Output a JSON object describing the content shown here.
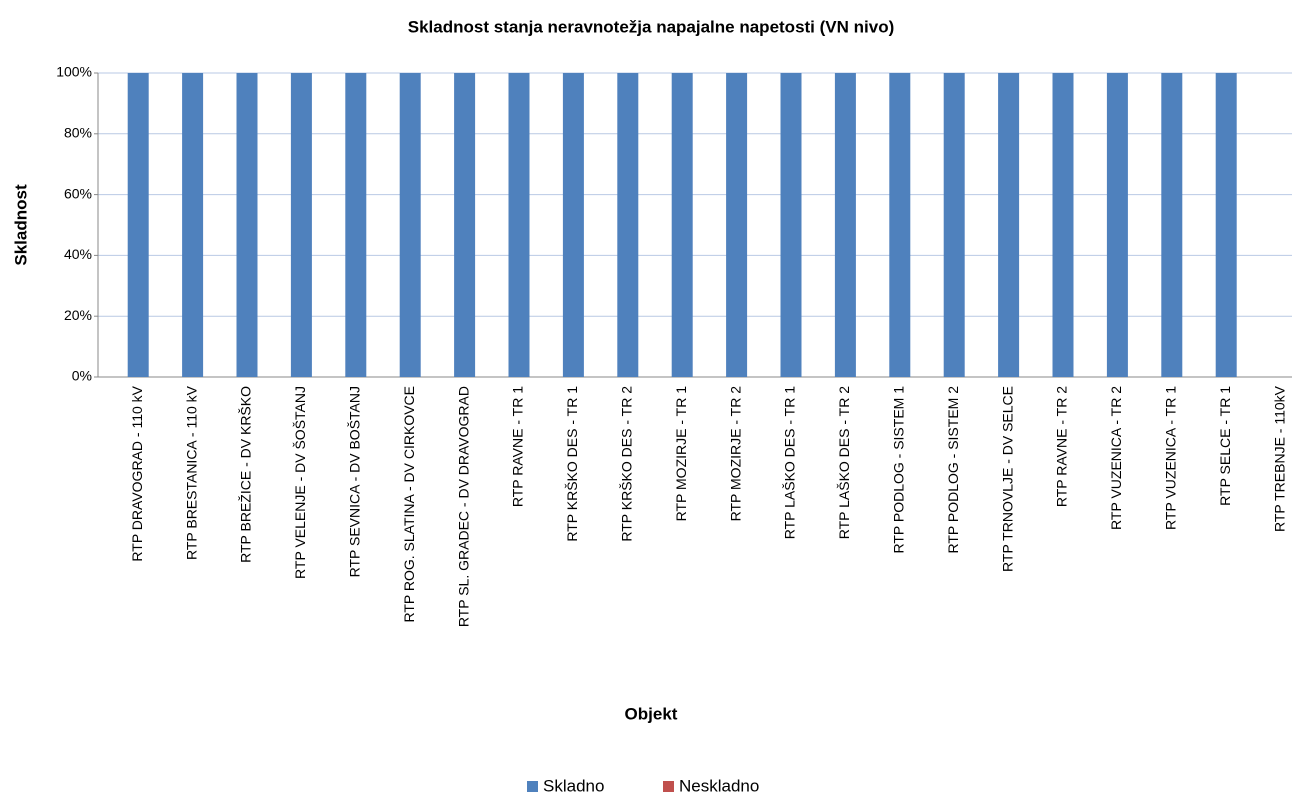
{
  "chart_data": {
    "type": "bar",
    "stacked": true,
    "title": "Skladnost stanja neravnotežja napajalne napetosti (VN nivo)",
    "x_label": "Objekt",
    "y_label": "Skladnost",
    "categories": [
      "RTP DRAVOGRAD - 110 kV",
      "RTP BRESTANICA - 110 kV",
      "RTP BREŽICE - DV KRŠKO",
      "RTP VELENJE - DV ŠOŠTANJ",
      "RTP SEVNICA - DV BOŠTANJ",
      "RTP ROG. SLATINA - DV CIRKOVCE",
      "RTP SL. GRADEC - DV DRAVOGRAD",
      "RTP RAVNE - TR 1",
      "RTP KRŠKO DES - TR 1",
      "RTP KRŠKO DES - TR 2",
      "RTP MOZIRJE - TR 1",
      "RTP MOZIRJE - TR 2",
      "RTP LAŠKO DES - TR 1",
      "RTP LAŠKO DES - TR 2",
      "RTP PODLOG - SISTEM 1",
      "RTP PODLOG - SISTEM 2",
      "RTP TRNOVLJE - DV SELCE",
      "RTP RAVNE - TR 2",
      "RTP VUZENICA - TR 2",
      "RTP VUZENICA - TR 1",
      "RTP SELCE - TR 1",
      "RTP TREBNJE - 110kV"
    ],
    "series": [
      {
        "name": "Skladno",
        "color": "#4f81bd",
        "values": [
          100,
          100,
          100,
          100,
          100,
          100,
          100,
          100,
          100,
          100,
          100,
          100,
          100,
          100,
          100,
          100,
          100,
          100,
          100,
          100,
          100,
          null
        ]
      },
      {
        "name": "Neskladno",
        "color": "#c0504d",
        "values": [
          0,
          0,
          0,
          0,
          0,
          0,
          0,
          0,
          0,
          0,
          0,
          0,
          0,
          0,
          0,
          0,
          0,
          0,
          0,
          0,
          0,
          null
        ]
      }
    ],
    "ylim": [
      0,
      100
    ],
    "yticks": [
      {
        "value": 0,
        "label": "0%"
      },
      {
        "value": 20,
        "label": "20%"
      },
      {
        "value": 40,
        "label": "40%"
      },
      {
        "value": 60,
        "label": "60%"
      },
      {
        "value": 80,
        "label": "80%"
      },
      {
        "value": 100,
        "label": "100%"
      }
    ],
    "grid": true,
    "legend": "bottom"
  }
}
